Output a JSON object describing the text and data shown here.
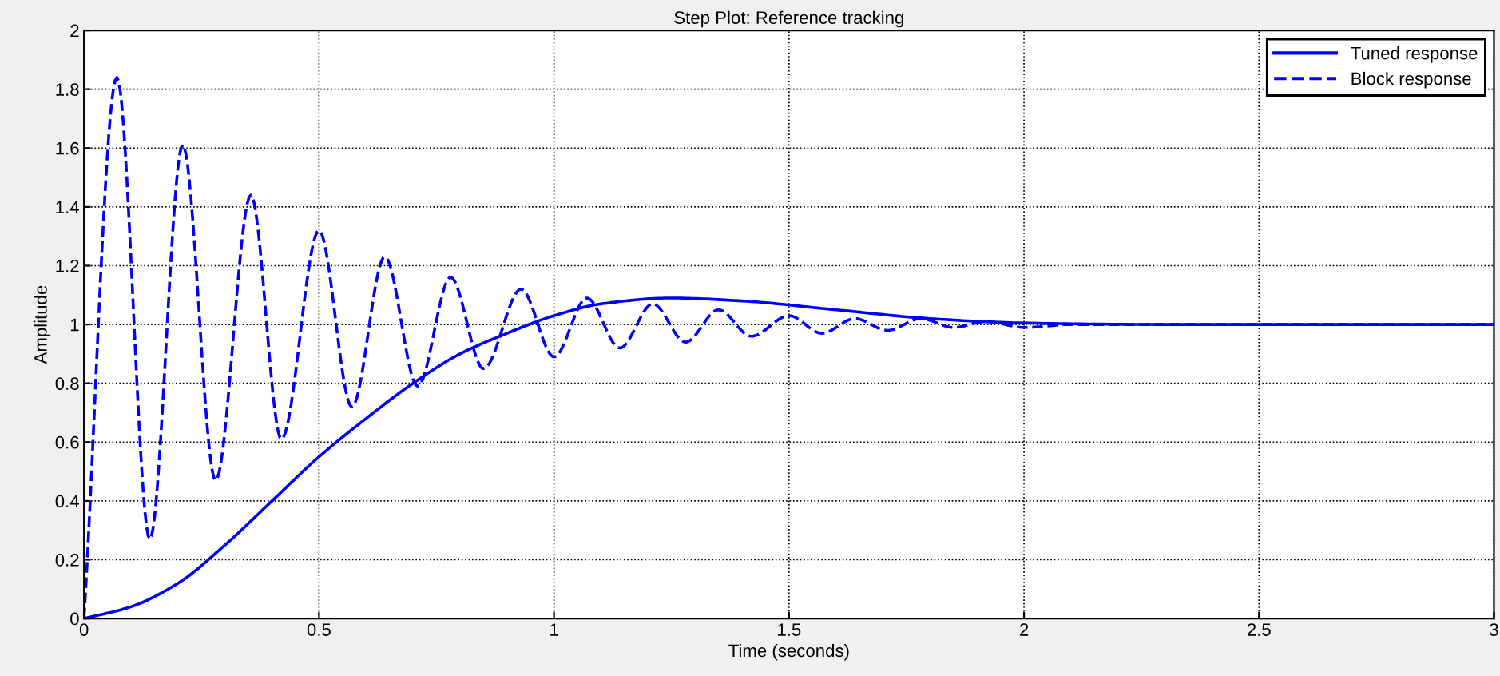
{
  "chart_data": {
    "type": "line",
    "title": "Step Plot: Reference tracking",
    "xlabel": "Time (seconds)",
    "ylabel": "Amplitude",
    "xlim": [
      0,
      3
    ],
    "ylim": [
      0,
      2
    ],
    "xticks": [
      0,
      0.5,
      1,
      1.5,
      2,
      2.5,
      3
    ],
    "yticks": [
      0,
      0.2,
      0.4,
      0.6,
      0.8,
      1,
      1.2,
      1.4,
      1.6,
      1.8,
      2
    ],
    "grid": true,
    "legend": "top right",
    "marker": "none",
    "series": [
      {
        "name": "Tuned response",
        "color": "#0000ff",
        "line_style": "solid",
        "x": [
          0,
          0.1,
          0.2,
          0.3,
          0.4,
          0.5,
          0.6,
          0.7,
          0.8,
          0.9,
          1.0,
          1.1,
          1.25,
          1.4,
          1.6,
          1.8,
          2.0,
          2.3,
          3
        ],
        "values": [
          0,
          0.04,
          0.12,
          0.25,
          0.4,
          0.55,
          0.68,
          0.8,
          0.9,
          0.97,
          1.03,
          1.07,
          1.09,
          1.08,
          1.05,
          1.02,
          1.005,
          1.0,
          1.0
        ]
      },
      {
        "name": "Block response",
        "color": "#0000ff",
        "line_style": "dashed",
        "x": [
          0,
          0.07,
          0.14,
          0.21,
          0.28,
          0.355,
          0.42,
          0.5,
          0.57,
          0.64,
          0.71,
          0.78,
          0.85,
          0.93,
          1.0,
          1.07,
          1.14,
          1.21,
          1.28,
          1.35,
          1.42,
          1.5,
          1.57,
          1.64,
          1.71,
          1.78,
          1.85,
          1.92,
          2.0,
          2.1,
          3
        ],
        "values": [
          0,
          1.84,
          0.27,
          1.61,
          0.47,
          1.44,
          0.61,
          1.32,
          0.72,
          1.23,
          0.79,
          1.16,
          0.85,
          1.12,
          0.89,
          1.09,
          0.92,
          1.07,
          0.94,
          1.05,
          0.96,
          1.03,
          0.97,
          1.02,
          0.98,
          1.02,
          0.99,
          1.01,
          0.99,
          1.0,
          1.0
        ]
      }
    ]
  }
}
